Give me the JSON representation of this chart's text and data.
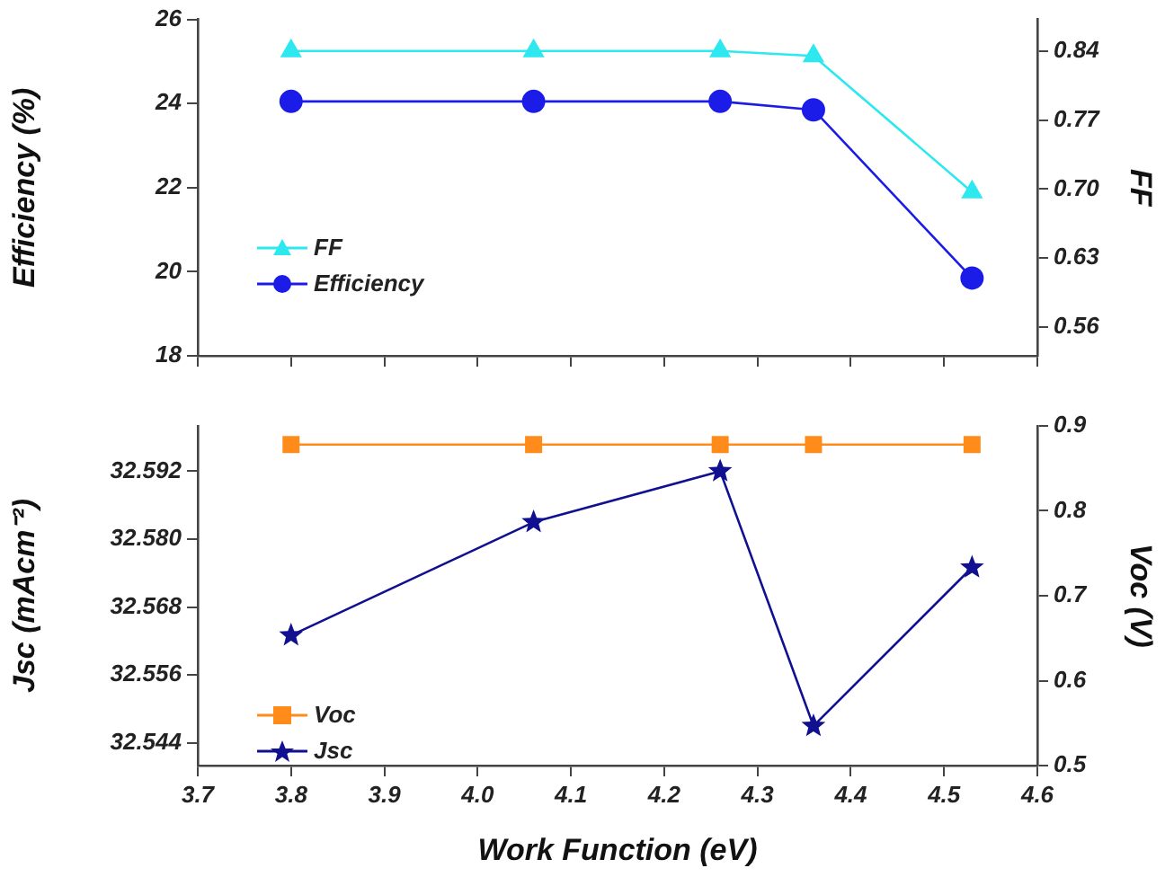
{
  "chart_data": [
    {
      "type": "line",
      "x": [
        3.8,
        4.06,
        4.26,
        4.36,
        4.53
      ],
      "xlim": [
        3.7,
        4.6
      ],
      "xticks": [
        3.7,
        3.8,
        3.9,
        4.0,
        4.1,
        4.2,
        4.3,
        4.4,
        4.5,
        4.6
      ],
      "ylabel": "Efficiency (%)",
      "y2label": "FF",
      "ylim": [
        18,
        26
      ],
      "yticks": [
        18,
        20,
        22,
        24,
        26
      ],
      "y2lim": [
        0.531,
        0.872
      ],
      "y2ticks": [
        0.56,
        0.63,
        {
          "value": 0.7,
          "label": "0.70"
        },
        0.77,
        0.84
      ],
      "tick_labels": "y",
      "grid": false,
      "legend": "bottom left",
      "line_style": "solid",
      "series": [
        {
          "name": "FF",
          "color": "#2ee8f0",
          "marker": "triangle",
          "axis": "y2",
          "values": [
            0.84,
            0.84,
            0.84,
            0.835,
            0.697
          ]
        },
        {
          "name": "Efficiency",
          "color": "#1c1ce8",
          "marker": "circle",
          "values": [
            24.05,
            24.05,
            24.05,
            23.85,
            19.85
          ]
        }
      ]
    },
    {
      "type": "line",
      "x": [
        3.8,
        4.06,
        4.26,
        4.36,
        4.53
      ],
      "xlim": [
        3.7,
        4.6
      ],
      "xticks": [
        {
          "value": 3.7,
          "label": "3.7"
        },
        {
          "value": 3.8,
          "label": "3.8"
        },
        {
          "value": 3.9,
          "label": "3.9"
        },
        {
          "value": 4.0,
          "label": "4.0"
        },
        {
          "value": 4.1,
          "label": "4.1"
        },
        {
          "value": 4.2,
          "label": "4.2"
        },
        {
          "value": 4.3,
          "label": "4.3"
        },
        {
          "value": 4.4,
          "label": "4.4"
        },
        {
          "value": 4.5,
          "label": "4.5"
        },
        {
          "value": 4.6,
          "label": "4.6"
        }
      ],
      "xlabel": "Work Function (eV)",
      "ylabel": "Jsc (mAcm⁻²)",
      "y2label": "Voc (V)",
      "ylim": [
        32.54,
        32.6
      ],
      "yticks": [
        {
          "value": 32.544,
          "label": "32.544"
        },
        {
          "value": 32.556,
          "label": "32.556"
        },
        {
          "value": 32.568,
          "label": "32.568"
        },
        {
          "value": 32.58,
          "label": "32.580"
        },
        {
          "value": 32.592,
          "label": "32.592"
        }
      ],
      "y2lim": [
        0.5,
        0.9
      ],
      "y2ticks": [
        0.5,
        0.6,
        0.7,
        0.8,
        0.9
      ],
      "grid": false,
      "legend": "bottom left",
      "line_style": "solid",
      "series": [
        {
          "name": "Voc",
          "color": "#ff8c1a",
          "marker": "square",
          "axis": "y2",
          "values": [
            0.878,
            0.878,
            0.878,
            0.878,
            0.878
          ]
        },
        {
          "name": "Jsc",
          "color": "#101090",
          "marker": "star",
          "values": [
            32.563,
            32.583,
            32.592,
            32.547,
            32.575
          ]
        }
      ]
    }
  ]
}
